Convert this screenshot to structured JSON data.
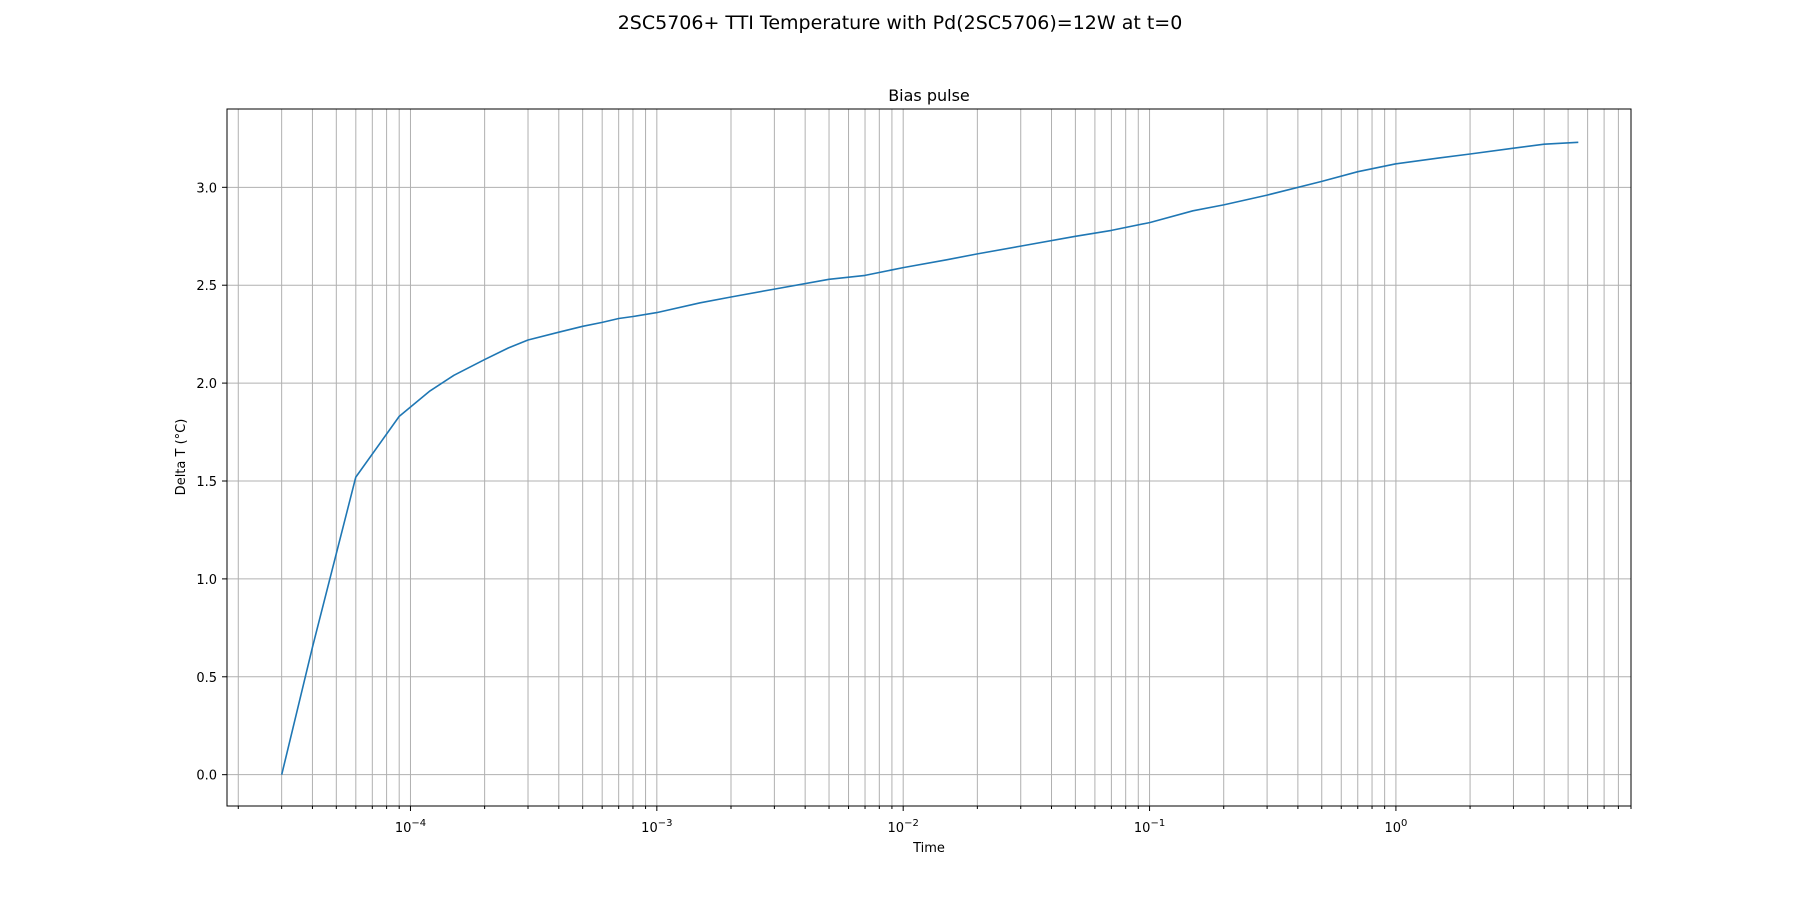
{
  "figure": {
    "suptitle": "2SC5706+ TTI Temperature with Pd(2SC5706)=12W at t=0"
  },
  "chart_data": {
    "type": "line",
    "title": "Bias pulse",
    "xlabel": "Time",
    "ylabel": "Delta T (°C)",
    "xscale": "log",
    "xlim": [
      1.8e-05,
      9.0
    ],
    "ylim": [
      -0.16,
      3.4
    ],
    "grid": "both-major-minor-x, major-y",
    "xticks": [
      {
        "value": 0.0001,
        "base": "10",
        "exp": "−4"
      },
      {
        "value": 0.001,
        "base": "10",
        "exp": "−3"
      },
      {
        "value": 0.01,
        "base": "10",
        "exp": "−2"
      },
      {
        "value": 0.1,
        "base": "10",
        "exp": "−1"
      },
      {
        "value": 1,
        "base": "10",
        "exp": "0"
      }
    ],
    "yticks": [
      {
        "value": 0.0,
        "label": "0.0"
      },
      {
        "value": 0.5,
        "label": "0.5"
      },
      {
        "value": 1.0,
        "label": "1.0"
      },
      {
        "value": 1.5,
        "label": "1.5"
      },
      {
        "value": 2.0,
        "label": "2.0"
      },
      {
        "value": 2.5,
        "label": "2.5"
      },
      {
        "value": 3.0,
        "label": "3.0"
      }
    ],
    "series": [
      {
        "color": "#1f77b4",
        "x": [
          3e-05,
          4e-05,
          6e-05,
          9e-05,
          0.00012,
          0.00015,
          0.0002,
          0.00025,
          0.0003,
          0.0004,
          0.0005,
          0.0006,
          0.0007,
          0.0008,
          0.001,
          0.0015,
          0.002,
          0.003,
          0.005,
          0.007,
          0.01,
          0.015,
          0.02,
          0.03,
          0.05,
          0.07,
          0.1,
          0.15,
          0.2,
          0.3,
          0.5,
          0.7,
          1.0,
          1.5,
          2.0,
          3.0,
          4.0,
          5.5
        ],
        "y": [
          0.0,
          0.65,
          1.52,
          1.83,
          1.96,
          2.04,
          2.12,
          2.18,
          2.22,
          2.26,
          2.29,
          2.31,
          2.33,
          2.34,
          2.36,
          2.41,
          2.44,
          2.48,
          2.53,
          2.55,
          2.59,
          2.63,
          2.66,
          2.7,
          2.75,
          2.78,
          2.82,
          2.88,
          2.91,
          2.96,
          3.03,
          3.08,
          3.12,
          3.15,
          3.17,
          3.2,
          3.22,
          3.23
        ]
      }
    ]
  }
}
